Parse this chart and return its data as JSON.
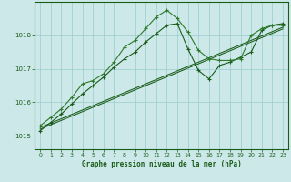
{
  "title": "Graphe pression niveau de la mer (hPa)",
  "bg_color": "#cce8e8",
  "grid_color": "#99cccc",
  "line_color_dark": "#1a5c1a",
  "line_color_mid": "#2d7a2d",
  "xlim": [
    -0.5,
    23.5
  ],
  "ylim": [
    1014.6,
    1019.0
  ],
  "yticks": [
    1015,
    1016,
    1017,
    1018
  ],
  "xticks": [
    0,
    1,
    2,
    3,
    4,
    5,
    6,
    7,
    8,
    9,
    10,
    11,
    12,
    13,
    14,
    15,
    16,
    17,
    18,
    19,
    20,
    21,
    22,
    23
  ],
  "series1": [
    1015.3,
    1015.55,
    1015.8,
    1016.15,
    1016.55,
    1016.65,
    1016.85,
    1017.2,
    1017.65,
    1017.85,
    1018.2,
    1018.55,
    1018.75,
    1018.5,
    1018.1,
    1017.55,
    1017.3,
    1017.25,
    1017.25,
    1017.3,
    1018.0,
    1018.2,
    1018.3,
    1018.3
  ],
  "series2": [
    1015.15,
    1015.4,
    1015.65,
    1015.95,
    1016.25,
    1016.5,
    1016.75,
    1017.05,
    1017.3,
    1017.5,
    1017.8,
    1018.05,
    1018.3,
    1018.35,
    1017.6,
    1016.95,
    1016.7,
    1017.1,
    1017.2,
    1017.35,
    1017.5,
    1018.15,
    1018.3,
    1018.35
  ],
  "series3": [
    1015.25,
    1015.38,
    1015.51,
    1015.64,
    1015.77,
    1015.9,
    1016.03,
    1016.16,
    1016.29,
    1016.42,
    1016.55,
    1016.68,
    1016.81,
    1016.94,
    1017.07,
    1017.2,
    1017.33,
    1017.46,
    1017.59,
    1017.72,
    1017.85,
    1017.98,
    1018.11,
    1018.24
  ],
  "series4": [
    1015.2,
    1015.33,
    1015.46,
    1015.59,
    1015.72,
    1015.85,
    1015.98,
    1016.11,
    1016.24,
    1016.37,
    1016.5,
    1016.63,
    1016.76,
    1016.89,
    1017.02,
    1017.15,
    1017.28,
    1017.41,
    1017.54,
    1017.67,
    1017.8,
    1017.93,
    1018.06,
    1018.19
  ]
}
